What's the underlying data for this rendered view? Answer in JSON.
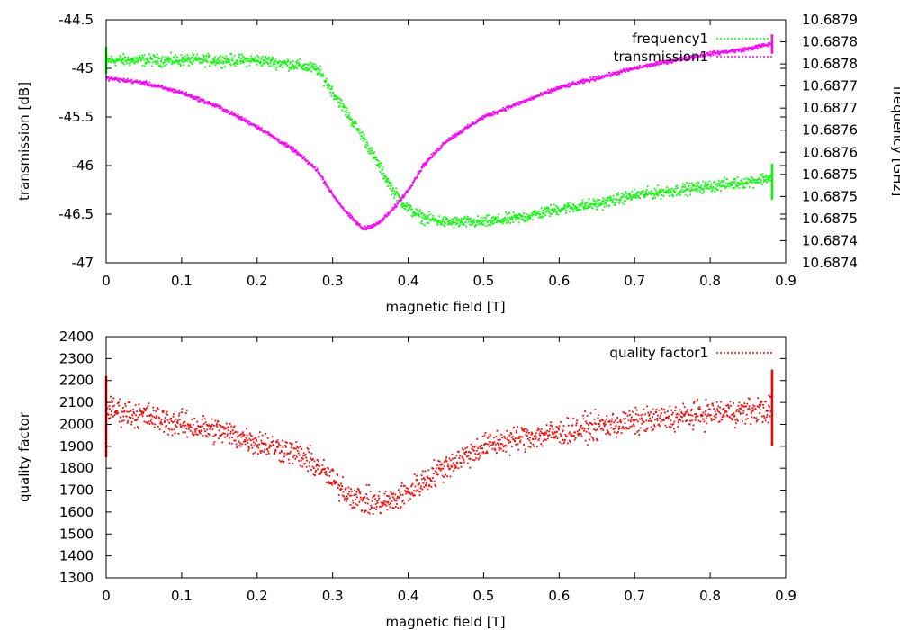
{
  "chart_data": [
    {
      "type": "scatter",
      "title": "",
      "xlabel": "magnetic field [T]",
      "ylabel": "transmission [dB]",
      "y2label": "frequency [GHz]",
      "xlim": [
        0,
        0.9
      ],
      "ylim": [
        -47,
        -44.5
      ],
      "y2lim": [
        10.68736,
        10.6879
      ],
      "x_ticks": [
        "0",
        "0.1",
        "0.2",
        "0.3",
        "0.4",
        "0.5",
        "0.6",
        "0.7",
        "0.8",
        "0.9"
      ],
      "y_ticks": [
        "-44.5",
        "-45",
        "-45.5",
        "-46",
        "-46.5",
        "-47"
      ],
      "y2_ticks": [
        "10.6879",
        "10.6878",
        "10.6878",
        "10.6877",
        "10.6877",
        "10.6876",
        "10.6876",
        "10.6875",
        "10.6875",
        "10.6875",
        "10.6874",
        "10.6874"
      ],
      "legend_position": "top-right",
      "series": [
        {
          "name": "frequency1",
          "axis": "y2",
          "color": "#00ff00",
          "x": [
            0.0,
            0.05,
            0.1,
            0.15,
            0.2,
            0.25,
            0.28,
            0.3,
            0.32,
            0.34,
            0.36,
            0.38,
            0.4,
            0.42,
            0.45,
            0.5,
            0.55,
            0.6,
            0.65,
            0.7,
            0.75,
            0.8,
            0.85,
            0.88
          ],
          "y": [
            10.68781,
            10.68781,
            10.68781,
            10.68781,
            10.68781,
            10.6878,
            10.68779,
            10.68774,
            10.68769,
            10.68764,
            10.68758,
            10.68752,
            10.68748,
            10.68746,
            10.68745,
            10.68745,
            10.68746,
            10.68748,
            10.68749,
            10.68751,
            10.68752,
            10.68753,
            10.68754,
            10.68755
          ]
        },
        {
          "name": "transmission1",
          "axis": "y",
          "color": "#ff00ff",
          "x": [
            0.0,
            0.05,
            0.1,
            0.15,
            0.2,
            0.25,
            0.28,
            0.3,
            0.32,
            0.34,
            0.36,
            0.38,
            0.4,
            0.42,
            0.45,
            0.5,
            0.55,
            0.6,
            0.65,
            0.7,
            0.75,
            0.8,
            0.85,
            0.88
          ],
          "y": [
            -45.1,
            -45.15,
            -45.25,
            -45.4,
            -45.6,
            -45.85,
            -46.05,
            -46.3,
            -46.5,
            -46.65,
            -46.6,
            -46.45,
            -46.25,
            -46.0,
            -45.75,
            -45.5,
            -45.35,
            -45.2,
            -45.1,
            -45.0,
            -44.92,
            -44.85,
            -44.8,
            -44.75
          ]
        }
      ]
    },
    {
      "type": "scatter",
      "title": "",
      "xlabel": "magnetic field [T]",
      "ylabel": "quality factor",
      "xlim": [
        0,
        0.9
      ],
      "ylim": [
        1300,
        2400
      ],
      "x_ticks": [
        "0",
        "0.1",
        "0.2",
        "0.3",
        "0.4",
        "0.5",
        "0.6",
        "0.7",
        "0.8",
        "0.9"
      ],
      "y_ticks": [
        "2400",
        "2300",
        "2200",
        "2100",
        "2000",
        "1900",
        "1800",
        "1700",
        "1600",
        "1500",
        "1400",
        "1300"
      ],
      "legend_position": "top-right",
      "series": [
        {
          "name": "quality factor1",
          "color": "#ff0000",
          "x": [
            0.0,
            0.05,
            0.1,
            0.15,
            0.2,
            0.25,
            0.28,
            0.3,
            0.32,
            0.34,
            0.36,
            0.38,
            0.4,
            0.42,
            0.45,
            0.5,
            0.55,
            0.6,
            0.65,
            0.7,
            0.75,
            0.8,
            0.85,
            0.88
          ],
          "y": [
            2070,
            2040,
            2000,
            1970,
            1920,
            1870,
            1810,
            1740,
            1690,
            1650,
            1640,
            1650,
            1690,
            1740,
            1810,
            1900,
            1940,
            1960,
            1990,
            2010,
            2030,
            2050,
            2060,
            2070
          ]
        }
      ]
    }
  ]
}
